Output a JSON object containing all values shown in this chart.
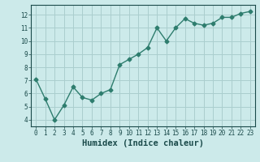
{
  "x": [
    0,
    1,
    2,
    3,
    4,
    5,
    6,
    7,
    8,
    9,
    10,
    11,
    12,
    13,
    14,
    15,
    16,
    17,
    18,
    19,
    20,
    21,
    22,
    23
  ],
  "y": [
    7.1,
    5.6,
    4.0,
    5.1,
    6.5,
    5.7,
    5.5,
    6.0,
    6.3,
    8.2,
    8.6,
    9.0,
    9.5,
    11.0,
    10.0,
    11.0,
    11.7,
    11.35,
    11.2,
    11.35,
    11.8,
    11.8,
    12.1,
    12.25
  ],
  "line_color": "#2e7d6e",
  "marker": "D",
  "markersize": 2.5,
  "bg_color": "#cceaea",
  "grid_color": "#aacece",
  "xlabel": "Humidex (Indice chaleur)",
  "ylim": [
    3.5,
    12.75
  ],
  "xlim": [
    -0.5,
    23.5
  ],
  "yticks": [
    4,
    5,
    6,
    7,
    8,
    9,
    10,
    11,
    12
  ],
  "xticks": [
    0,
    1,
    2,
    3,
    4,
    5,
    6,
    7,
    8,
    9,
    10,
    11,
    12,
    13,
    14,
    15,
    16,
    17,
    18,
    19,
    20,
    21,
    22,
    23
  ],
  "tick_labelsize": 5.5,
  "xlabel_fontsize": 7.5,
  "label_color": "#1a4a4a",
  "linewidth": 1.0
}
